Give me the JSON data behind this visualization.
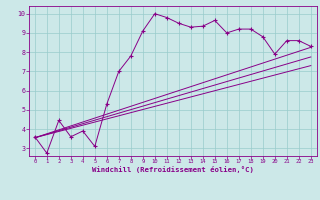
{
  "bg_color": "#cce8e8",
  "grid_color": "#99cccc",
  "line_color": "#880088",
  "xlabel": "Windchill (Refroidissement éolien,°C)",
  "xlim": [
    -0.5,
    23.5
  ],
  "ylim": [
    2.6,
    10.4
  ],
  "yticks": [
    3,
    4,
    5,
    6,
    7,
    8,
    9,
    10
  ],
  "xticks": [
    0,
    1,
    2,
    3,
    4,
    5,
    6,
    7,
    8,
    9,
    10,
    11,
    12,
    13,
    14,
    15,
    16,
    17,
    18,
    19,
    20,
    21,
    22,
    23
  ],
  "main_x": [
    0,
    1,
    2,
    3,
    4,
    5,
    6,
    7,
    8,
    9,
    10,
    11,
    12,
    13,
    14,
    15,
    16,
    17,
    18,
    19,
    20,
    21,
    22,
    23
  ],
  "main_y": [
    3.6,
    2.75,
    4.45,
    3.6,
    3.9,
    3.1,
    5.3,
    7.0,
    7.8,
    9.1,
    10.0,
    9.8,
    9.5,
    9.3,
    9.35,
    9.65,
    9.0,
    9.2,
    9.2,
    8.8,
    7.9,
    8.6,
    8.6,
    8.3
  ],
  "line2_x": [
    0,
    23
  ],
  "line2_y": [
    3.55,
    8.25
  ],
  "line3_x": [
    0,
    23
  ],
  "line3_y": [
    3.55,
    7.75
  ],
  "line4_x": [
    0,
    23
  ],
  "line4_y": [
    3.55,
    7.3
  ]
}
